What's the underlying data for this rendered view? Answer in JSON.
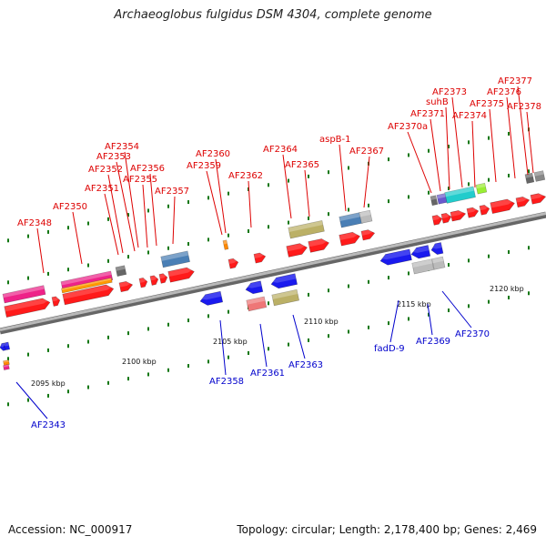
{
  "title": "Archaeoglobus fulgidus DSM 4304, complete genome",
  "footer": {
    "accession": "Accession: NC_000917",
    "stats": "Topology: circular; Length: 2,178,400 bp; Genes: 2,469"
  },
  "colors": {
    "forward_label": "#dd0000",
    "reverse_label": "#0000cc",
    "forward_gene": "#ff1a1a",
    "reverse_gene": "#1a1aee",
    "backbone": "#9a9a9a",
    "tick": "#117711"
  },
  "scale": {
    "kbp_labels": [
      "2095 kbp",
      "2100 kbp",
      "2105 kbp",
      "2110 kbp",
      "2115 kbp",
      "2120 kbp"
    ]
  },
  "forward_labels": [
    "AF2348",
    "AF2350",
    "AF2351",
    "AF2352",
    "AF2353",
    "AF2354",
    "AF2355",
    "AF2356",
    "AF2357",
    "AF2359",
    "AF2360",
    "AF2362",
    "AF2364",
    "AF2365",
    "aspB-1",
    "AF2367",
    "AF2370a",
    "AF2371",
    "suhB",
    "AF2373",
    "AF2374",
    "AF2375",
    "AF2376",
    "AF2377",
    "AF2378"
  ],
  "reverse_labels": [
    "AF2343",
    "AF2358",
    "AF2361",
    "AF2363",
    "fadD-9",
    "AF2369",
    "AF2370"
  ]
}
